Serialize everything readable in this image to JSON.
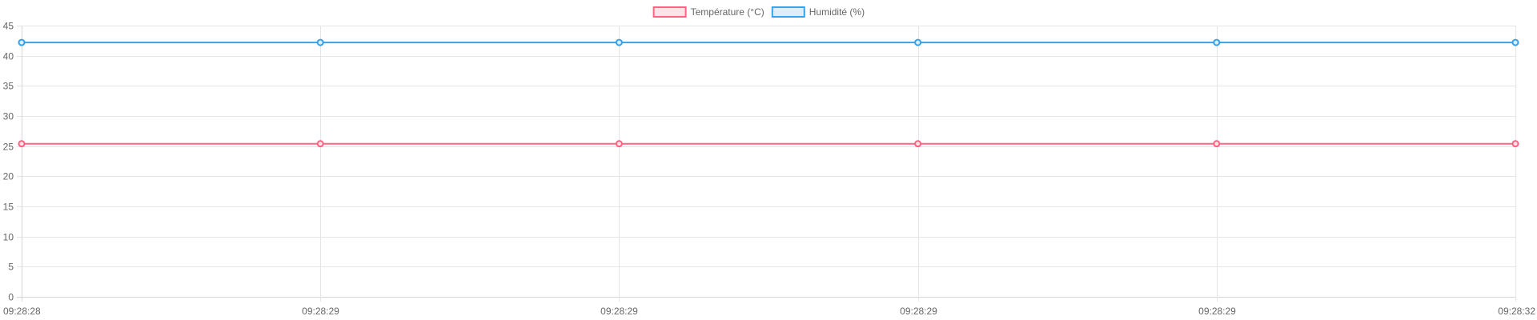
{
  "chart_data": {
    "type": "line",
    "x": [
      "09:28:28",
      "09:28:29",
      "09:28:29",
      "09:28:29",
      "09:28:29",
      "09:28:32"
    ],
    "series": [
      {
        "name": "Température (°C)",
        "values": [
          25.4,
          25.4,
          25.4,
          25.4,
          25.4,
          25.4
        ],
        "color": "#ff6384",
        "fill": "#fde3e8"
      },
      {
        "name": "Humidité (%)",
        "values": [
          42.2,
          42.2,
          42.2,
          42.2,
          42.2,
          42.2
        ],
        "color": "#36a2eb",
        "fill": "#dceefb"
      }
    ],
    "ylim": [
      0,
      45
    ],
    "yticks": [
      0,
      5,
      10,
      15,
      20,
      25,
      30,
      35,
      40,
      45
    ],
    "grid": true,
    "legend": "top-center"
  }
}
